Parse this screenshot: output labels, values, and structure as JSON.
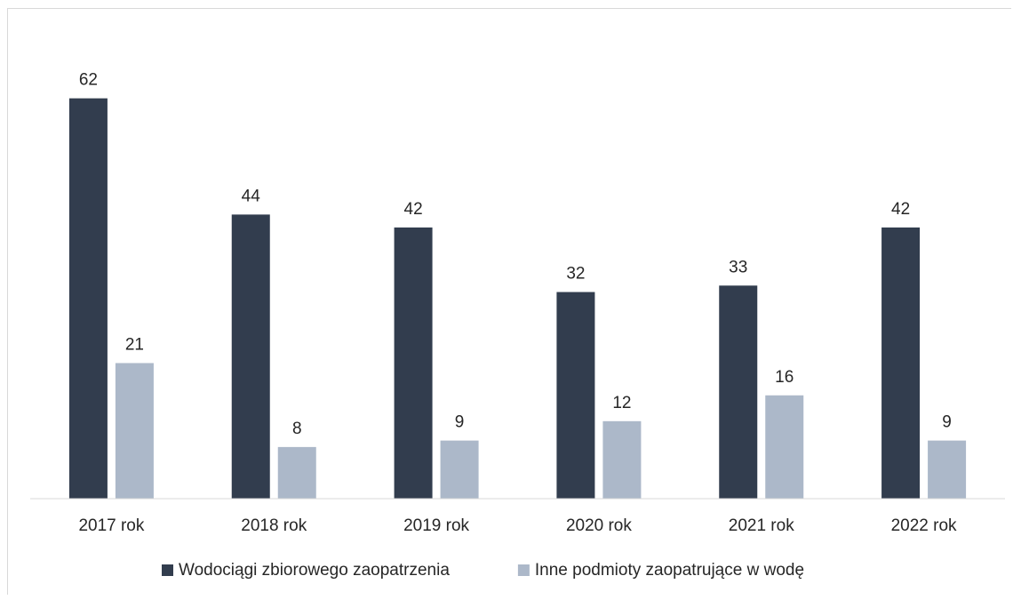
{
  "chart_data": {
    "type": "bar",
    "categories": [
      "2017 rok",
      "2018 rok",
      "2019 rok",
      "2020 rok",
      "2021 rok",
      "2022 rok"
    ],
    "series": [
      {
        "name": "Wodociągi zbiorowego zaopatrzenia",
        "values": [
          62,
          44,
          42,
          32,
          33,
          42
        ],
        "color": "#323d4e"
      },
      {
        "name": "Inne podmioty zaopatrujące w wodę",
        "values": [
          21,
          8,
          9,
          12,
          16,
          9
        ],
        "color": "#acb8c9"
      }
    ],
    "ylim": [
      0,
      70
    ],
    "grid": false,
    "legend": "bottom",
    "data_labels": true
  }
}
